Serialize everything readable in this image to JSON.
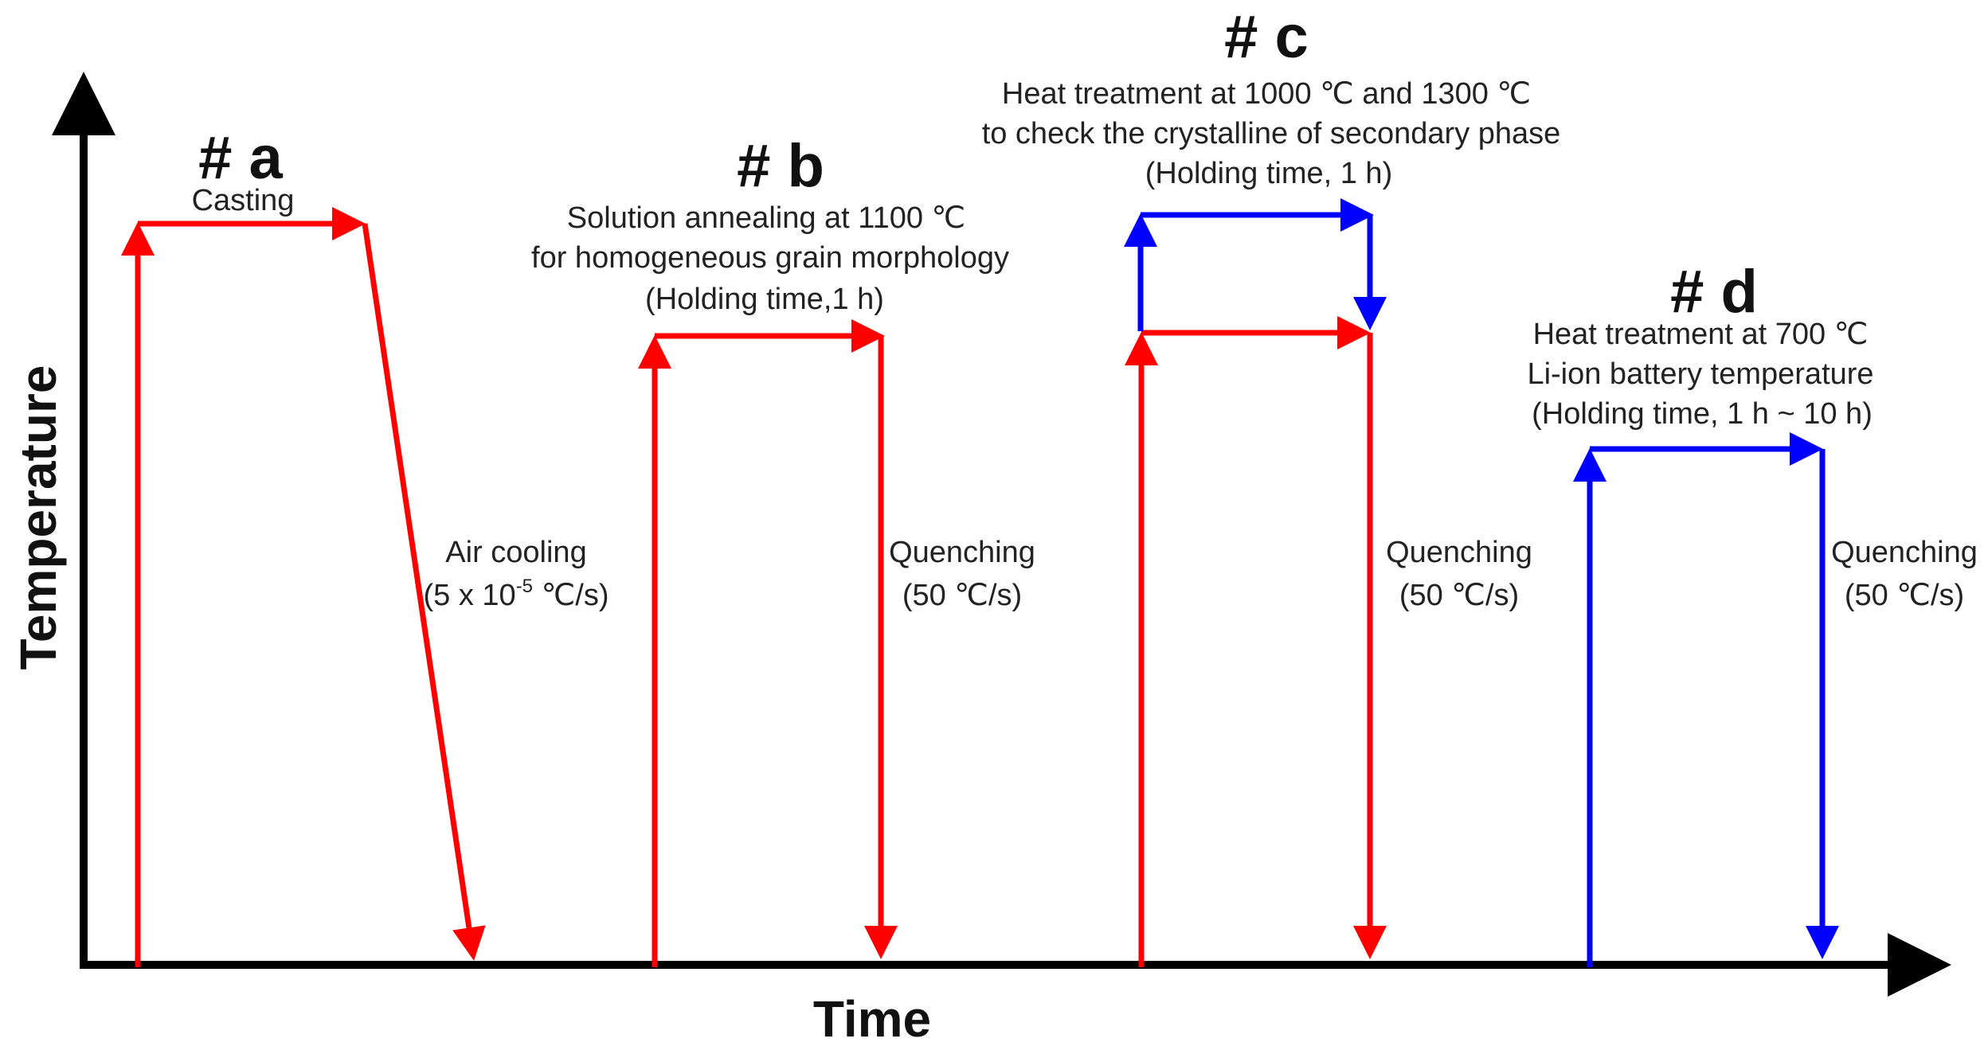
{
  "axes": {
    "x_label": "Time",
    "y_label": "Temperature"
  },
  "colors": {
    "axis": "#000000",
    "red": "#ff0000",
    "blue": "#0000ff"
  },
  "stages": {
    "a": {
      "heading": "# a",
      "caption": "Casting",
      "cooling_line1": "Air cooling",
      "cooling_prefix": "(5 x 10",
      "cooling_exp": "-5",
      "cooling_suffix": " ℃/s)"
    },
    "b": {
      "heading": "# b",
      "desc_line1": "Solution annealing at 1100 ℃",
      "desc_line2": "for homogeneous grain morphology",
      "desc_line3": "(Holding time,1 h)",
      "cooling_line1": "Quenching",
      "cooling_line2": "(50 ℃/s)"
    },
    "c": {
      "heading": "# c",
      "desc_line1": "Heat treatment at 1000 ℃ and 1300 ℃",
      "desc_line2": "to check the crystalline of secondary phase",
      "desc_line3": "(Holding time,  1 h)",
      "cooling_line1": "Quenching",
      "cooling_line2": "(50 ℃/s)"
    },
    "d": {
      "heading": "# d",
      "desc_line1": "Heat treatment at 700 ℃",
      "desc_line2": "Li-ion battery temperature",
      "desc_line3": "(Holding time,  1 h ~  10 h)",
      "cooling_line1": "Quenching",
      "cooling_line2": "(50 ℃/s)"
    }
  }
}
